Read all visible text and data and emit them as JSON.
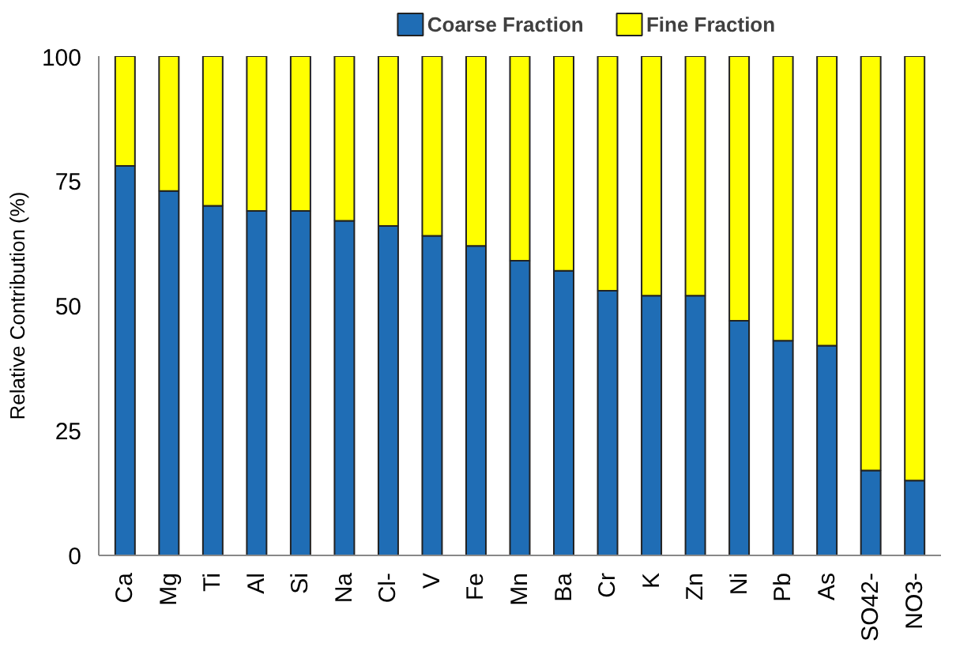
{
  "chart_data": {
    "type": "bar",
    "stacked": true,
    "ylabel": "Relative Contribution (%)",
    "categories": [
      "Ca",
      "Mg",
      "Ti",
      "Al",
      "Si",
      "Na",
      "Cl-",
      "V",
      "Fe",
      "Mn",
      "Ba",
      "Cr",
      "K",
      "Zn",
      "Ni",
      "Pb",
      "As",
      "SO42-",
      "NO3-"
    ],
    "series": [
      {
        "name": "Coarse Fraction",
        "color": "#1f6db5",
        "values": [
          78,
          73,
          70,
          69,
          69,
          67,
          66,
          64,
          62,
          59,
          57,
          53,
          52,
          52,
          47,
          43,
          42,
          17,
          15
        ]
      },
      {
        "name": "Fine Fraction",
        "color": "#ffff00",
        "values": [
          22,
          27,
          30,
          31,
          31,
          33,
          34,
          36,
          38,
          41,
          43,
          47,
          48,
          48,
          53,
          57,
          58,
          83,
          85
        ]
      }
    ],
    "ylim": [
      0,
      100
    ],
    "yticks": [
      0,
      25,
      50,
      75,
      100
    ],
    "grid": false,
    "legend": "top"
  }
}
